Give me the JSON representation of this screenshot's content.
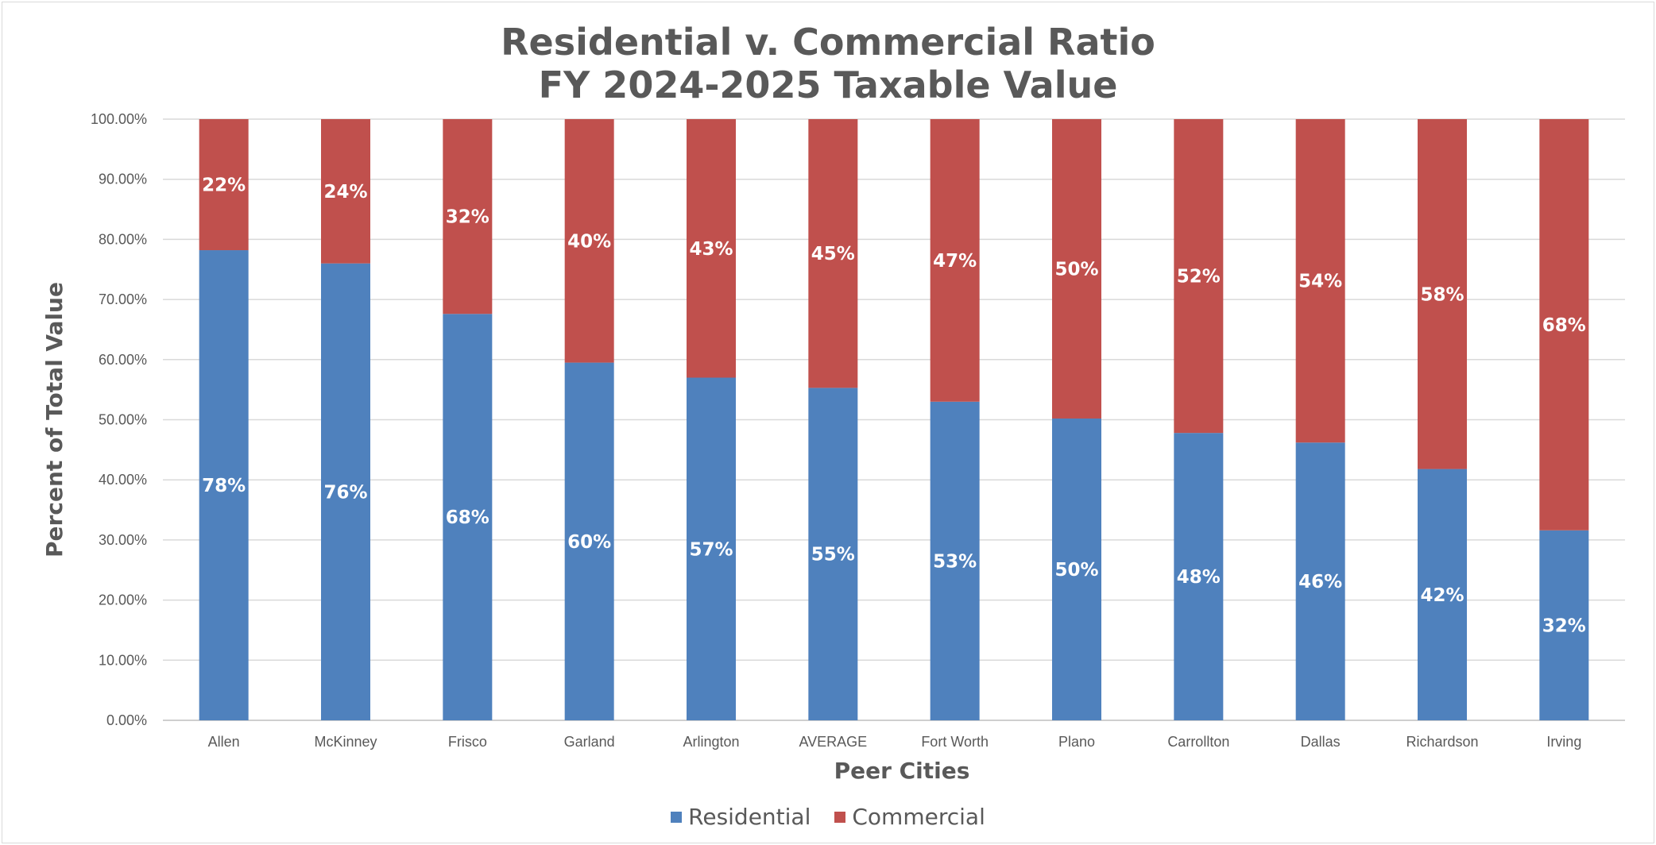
{
  "chart_data": {
    "type": "bar",
    "stacked": true,
    "title": "Residential v. Commercial Ratio",
    "subtitle": "FY 2024-2025 Taxable Value",
    "xlabel": "Peer Cities",
    "ylabel": "Percent of Total Value",
    "ylim": [
      0,
      100
    ],
    "yticks": [
      "0.00%",
      "10.00%",
      "20.00%",
      "30.00%",
      "40.00%",
      "50.00%",
      "60.00%",
      "70.00%",
      "80.00%",
      "90.00%",
      "100.00%"
    ],
    "categories": [
      "Allen",
      "McKinney",
      "Frisco",
      "Garland",
      "Arlington",
      "AVERAGE",
      "Fort Worth",
      "Plano",
      "Carrollton",
      "Dallas",
      "Richardson",
      "Irving"
    ],
    "series": [
      {
        "name": "Residential",
        "color": "#4f81bd",
        "values": [
          78.2,
          76.0,
          67.6,
          59.5,
          57.0,
          55.3,
          53.0,
          50.2,
          47.8,
          46.2,
          41.8,
          31.6
        ],
        "labels": [
          "78%",
          "76%",
          "68%",
          "60%",
          "57%",
          "55%",
          "53%",
          "50%",
          "48%",
          "46%",
          "42%",
          "32%"
        ]
      },
      {
        "name": "Commercial",
        "color": "#c0504d",
        "values": [
          21.8,
          24.0,
          32.4,
          40.5,
          43.0,
          44.7,
          47.0,
          49.8,
          52.2,
          53.8,
          58.2,
          68.4
        ],
        "labels": [
          "22%",
          "24%",
          "32%",
          "40%",
          "43%",
          "45%",
          "47%",
          "50%",
          "52%",
          "54%",
          "58%",
          "68%"
        ]
      }
    ],
    "grid": true,
    "legend_position": "bottom"
  }
}
